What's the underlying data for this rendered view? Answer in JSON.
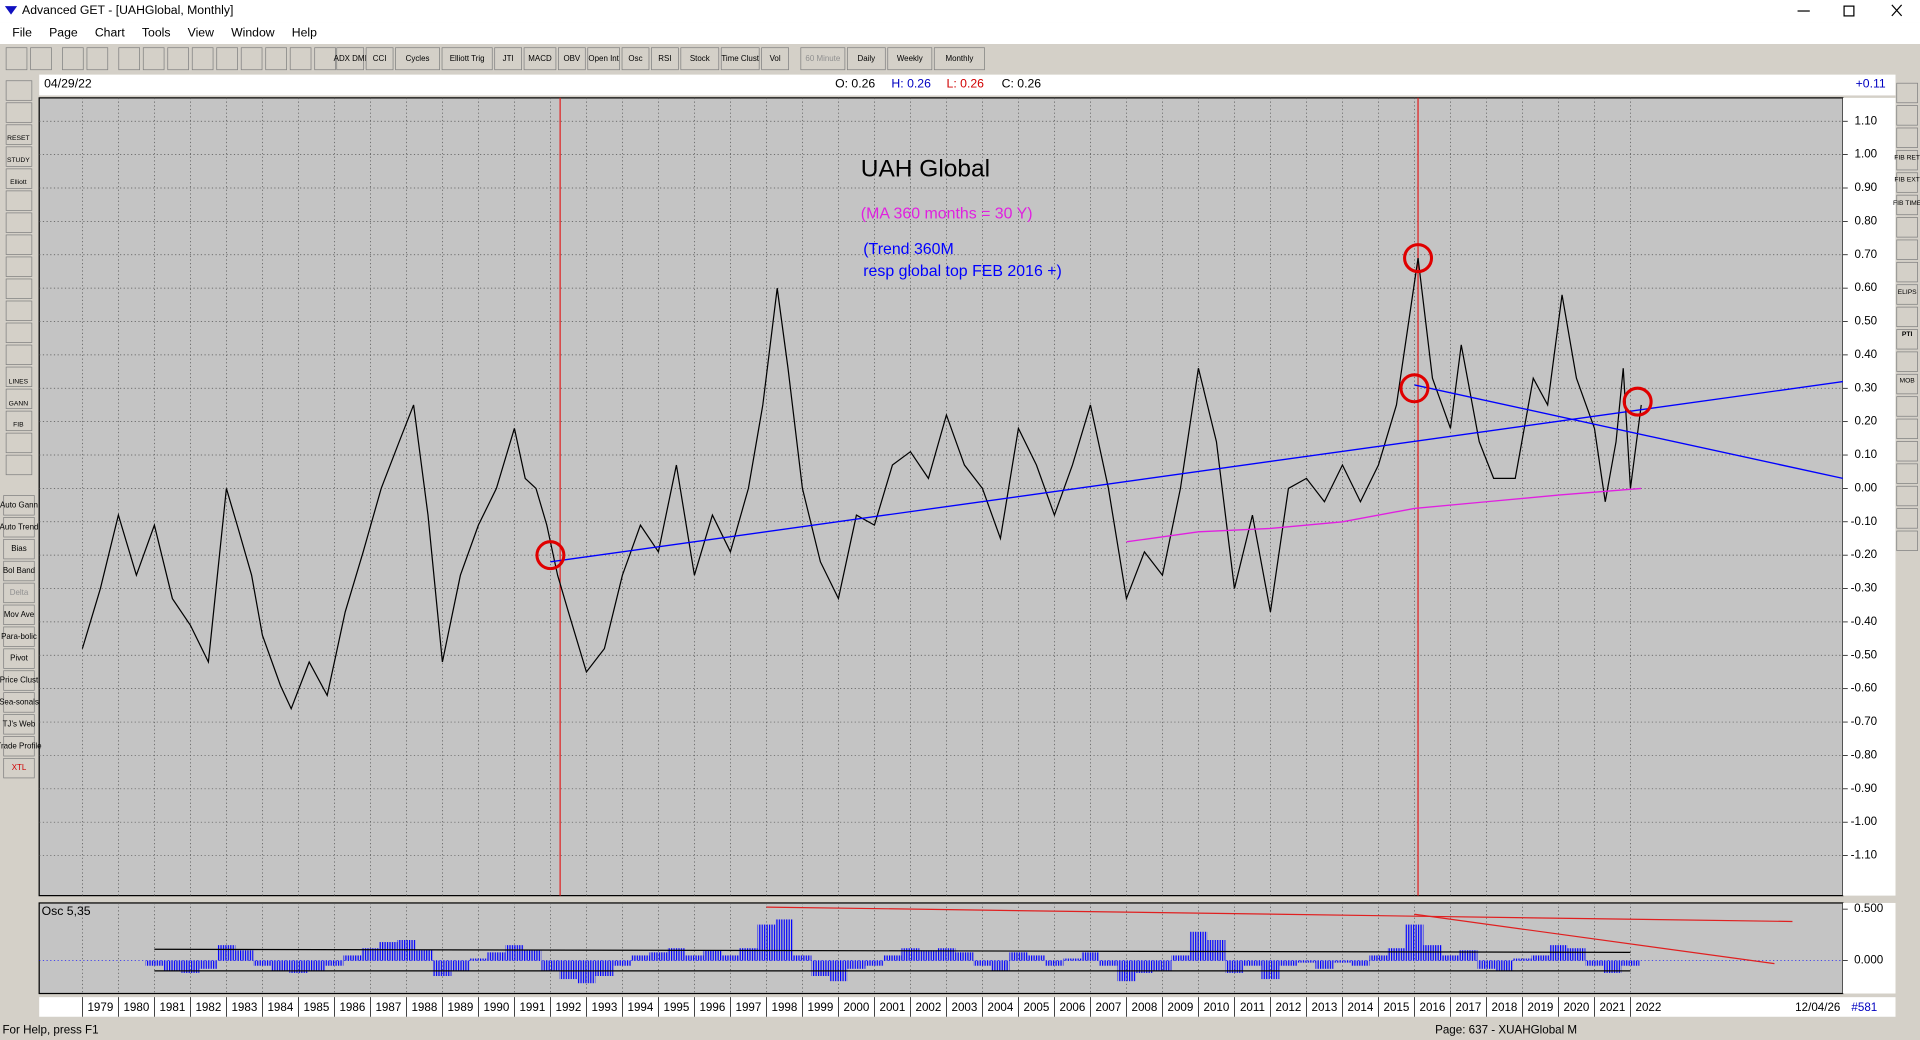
{
  "window": {
    "title": "Advanced GET - [UAHGlobal, Monthly]"
  },
  "menu": [
    "File",
    "Page",
    "Chart",
    "Tools",
    "View",
    "Window",
    "Help"
  ],
  "toolbar": [
    "ADX DMI",
    "CCI",
    "Cycles",
    "Elliott Trig",
    "JTI",
    "MACD",
    "OBV",
    "Open Int",
    "Osc",
    "RSI",
    "Stock",
    "Time Clust",
    "Vol",
    "60 Minute",
    "Daily",
    "Weekly",
    "Monthly"
  ],
  "left_toolbar": [
    "RESET",
    "STUDY",
    "Elliott",
    "LINES",
    "GANN",
    "FIB",
    "Auto Gann",
    "Auto Trend",
    "Bias",
    "Bol Band",
    "Delta",
    "Mov Ave",
    "Para-bolic",
    "Pivot",
    "Price Clust",
    "Sea-sonals",
    "TJ's Web",
    "Trade Profile",
    "XTL"
  ],
  "right_toolbar": [
    "FIB RET",
    "FIB EXT",
    "FIB TIME",
    "ELIPS",
    "PTI",
    "MOB"
  ],
  "header": {
    "date": "04/29/22",
    "open": "O: 0.26",
    "high": "H: 0.26",
    "low": "L: 0.26",
    "close": "C: 0.26",
    "axis_top": "+0.11"
  },
  "chart_data": {
    "type": "line",
    "annotations": [
      "UAH Global",
      "(MA 360 months = 30 Y)",
      "(Trend 360M",
      "resp global top FEB 2016 +)"
    ],
    "xlim": [
      1977.8,
      2027.9
    ],
    "xticks": [
      1979,
      1980,
      1981,
      1982,
      1983,
      1984,
      1985,
      1986,
      1987,
      1988,
      1989,
      1990,
      1991,
      1992,
      1993,
      1994,
      1995,
      1996,
      1997,
      1998,
      1999,
      2000,
      2001,
      2002,
      2003,
      2004,
      2005,
      2006,
      2007,
      2008,
      2009,
      2010,
      2011,
      2012,
      2013,
      2014,
      2015,
      2016,
      2017,
      2018,
      2019,
      2020,
      2021,
      2022
    ],
    "ylim": [
      -1.22,
      1.17
    ],
    "yticks": [
      {
        "value": 1.1,
        "label": "1.10"
      },
      {
        "value": 1.0,
        "label": "1.00"
      },
      {
        "value": 0.9,
        "label": "0.90"
      },
      {
        "value": 0.8,
        "label": "0.80"
      },
      {
        "value": 0.7,
        "label": "0.70"
      },
      {
        "value": 0.6,
        "label": "0.60"
      },
      {
        "value": 0.5,
        "label": "0.50"
      },
      {
        "value": 0.4,
        "label": "0.40"
      },
      {
        "value": 0.3,
        "label": "0.30"
      },
      {
        "value": 0.2,
        "label": "0.20"
      },
      {
        "value": 0.1,
        "label": "0.10"
      },
      {
        "value": 0,
        "label": "0.00"
      },
      {
        "value": -0.1,
        "label": "-0.10"
      },
      {
        "value": -0.2,
        "label": "-0.20"
      },
      {
        "value": -0.3,
        "label": "-0.30"
      },
      {
        "value": -0.4,
        "label": "-0.40"
      },
      {
        "value": -0.5,
        "label": "-0.50"
      },
      {
        "value": -0.6,
        "label": "-0.60"
      },
      {
        "value": -0.7,
        "label": "-0.70"
      },
      {
        "value": -0.8,
        "label": "-0.80"
      },
      {
        "value": -0.9,
        "label": "-0.90"
      },
      {
        "value": -1.0,
        "label": "-1.00"
      },
      {
        "value": -1.1,
        "label": "-1.10"
      }
    ],
    "grid": true,
    "series": [
      {
        "color": "#000000",
        "x": [
          1979.0,
          1979.5,
          1980.0,
          1980.5,
          1981.0,
          1981.5,
          1982.0,
          1982.5,
          1983.0,
          1983.3,
          1983.7,
          1984.0,
          1984.5,
          1984.8,
          1985.3,
          1985.8,
          1986.3,
          1986.8,
          1987.3,
          1987.8,
          1988.2,
          1988.6,
          1989.0,
          1989.5,
          1990.0,
          1990.5,
          1991.0,
          1991.3,
          1991.6,
          1991.9,
          1992.2,
          1992.5,
          1993.0,
          1993.5,
          1994.0,
          1994.5,
          1995.0,
          1995.5,
          1996.0,
          1996.5,
          1997.0,
          1997.5,
          1997.9,
          1998.3,
          1998.6,
          1999.0,
          1999.5,
          2000.0,
          2000.5,
          2001.0,
          2001.5,
          2002.0,
          2002.5,
          2003.0,
          2003.5,
          2004.0,
          2004.5,
          2005.0,
          2005.5,
          2006.0,
          2006.5,
          2007.0,
          2007.5,
          2008.0,
          2008.5,
          2009.0,
          2009.5,
          2010.0,
          2010.5,
          2011.0,
          2011.5,
          2012.0,
          2012.5,
          2013.0,
          2013.5,
          2014.0,
          2014.5,
          2015.0,
          2015.5,
          2016.1,
          2016.5,
          2017.0,
          2017.3,
          2017.8,
          2018.2,
          2018.8,
          2019.3,
          2019.7,
          2020.1,
          2020.5,
          2021.0,
          2021.3,
          2021.6,
          2021.8,
          2022.0,
          2022.3
        ],
        "values": [
          -0.48,
          -0.3,
          -0.08,
          -0.26,
          -0.11,
          -0.33,
          -0.41,
          -0.52,
          0,
          -0.11,
          -0.26,
          -0.44,
          -0.59,
          -0.66,
          -0.52,
          -0.62,
          -0.37,
          -0.19,
          0,
          0.14,
          0.25,
          -0.08,
          -0.52,
          -0.26,
          -0.11,
          0,
          0.18,
          0.03,
          0,
          -0.11,
          -0.26,
          -0.37,
          -0.55,
          -0.48,
          -0.26,
          -0.11,
          -0.19,
          0.07,
          -0.26,
          -0.08,
          -0.19,
          0,
          0.25,
          0.6,
          0.36,
          0,
          -0.22,
          -0.33,
          -0.08,
          -0.11,
          0.07,
          0.11,
          0.03,
          0.22,
          0.07,
          0,
          -0.15,
          0.18,
          0.07,
          -0.08,
          0.07,
          0.25,
          0,
          -0.33,
          -0.19,
          -0.26,
          0,
          0.36,
          0.14,
          -0.3,
          -0.08,
          -0.37,
          0,
          0.03,
          -0.04,
          0.07,
          -0.04,
          0.07,
          0.25,
          0.69,
          0.33,
          0.18,
          0.43,
          0.14,
          0.03,
          0.03,
          0.33,
          0.25,
          0.58,
          0.33,
          0.18,
          -0.04,
          0.14,
          0.36,
          0,
          0.25
        ]
      },
      {
        "color": "#e020e0",
        "x": [
          2008,
          2010,
          2012,
          2014,
          2016,
          2018,
          2020,
          2022.3
        ],
        "values": [
          -0.16,
          -0.13,
          -0.12,
          -0.1,
          -0.06,
          -0.04,
          -0.02,
          0
        ]
      },
      {
        "color": "#0000ff",
        "x": [
          1992,
          2027.9
        ],
        "values": [
          -0.22,
          0.32
        ]
      },
      {
        "color": "#0000ff",
        "x": [
          2016,
          2027.9
        ],
        "values": [
          0.31,
          0.03
        ]
      }
    ],
    "vlines": [
      1992.27,
      2016.1
    ],
    "markers": [
      {
        "x": 1992.0,
        "y": -0.2
      },
      {
        "x": 2016.1,
        "y": 0.69
      },
      {
        "x": 2016.0,
        "y": 0.3
      },
      {
        "x": 2022.2,
        "y": 0.26
      }
    ],
    "oscillator": {
      "title": "Osc 5,35",
      "color": "#0000ff",
      "ylim": [
        -0.32,
        0.56
      ],
      "yticks": [
        {
          "value": 0.5,
          "label": "0.500"
        },
        {
          "value": 0,
          "label": "0.000"
        }
      ],
      "x": [
        1981.0,
        1981.5,
        1982.0,
        1982.5,
        1983.0,
        1983.5,
        1984.0,
        1984.5,
        1985.0,
        1985.5,
        1986.0,
        1986.5,
        1987.0,
        1987.5,
        1988.0,
        1988.5,
        1989.0,
        1989.5,
        1990.0,
        1990.5,
        1991.0,
        1991.5,
        1992.0,
        1992.5,
        1993.0,
        1993.5,
        1994.0,
        1994.5,
        1995.0,
        1995.5,
        1996.0,
        1996.5,
        1997.0,
        1997.5,
        1998.0,
        1998.5,
        1999.0,
        1999.5,
        2000.0,
        2000.5,
        2001.0,
        2001.5,
        2002.0,
        2002.5,
        2003.0,
        2003.5,
        2004.0,
        2004.5,
        2005.0,
        2005.5,
        2006.0,
        2006.5,
        2007.0,
        2007.5,
        2008.0,
        2008.5,
        2009.0,
        2009.5,
        2010.0,
        2010.5,
        2011.0,
        2011.5,
        2012.0,
        2012.5,
        2013.0,
        2013.5,
        2014.0,
        2014.5,
        2015.0,
        2015.5,
        2016.0,
        2016.5,
        2017.0,
        2017.5,
        2018.0,
        2018.5,
        2019.0,
        2019.5,
        2020.0,
        2020.5,
        2021.0,
        2021.5,
        2022.0
      ],
      "values": [
        -0.05,
        -0.1,
        -0.12,
        -0.08,
        0.15,
        0.1,
        -0.05,
        -0.1,
        -0.12,
        -0.1,
        -0.05,
        0.05,
        0.12,
        0.18,
        0.2,
        0.1,
        -0.15,
        -0.1,
        0.02,
        0.08,
        0.15,
        0.1,
        -0.1,
        -0.18,
        -0.22,
        -0.15,
        -0.05,
        0.05,
        0.08,
        0.12,
        0.05,
        0.1,
        0.05,
        0.12,
        0.35,
        0.4,
        0.05,
        -0.15,
        -0.2,
        -0.08,
        -0.05,
        0.05,
        0.12,
        0.1,
        0.12,
        0.08,
        -0.05,
        -0.1,
        0.08,
        0.05,
        -0.05,
        0.02,
        0.08,
        -0.05,
        -0.2,
        -0.12,
        -0.1,
        0.05,
        0.28,
        0.2,
        -0.12,
        -0.05,
        -0.18,
        -0.05,
        -0.02,
        -0.08,
        -0.02,
        -0.05,
        0.05,
        0.12,
        0.35,
        0.15,
        0.05,
        0.1,
        -0.08,
        -0.1,
        0.02,
        0.05,
        0.15,
        0.12,
        -0.05,
        -0.12,
        -0.05
      ],
      "lines": [
        {
          "color": "#000000",
          "x": [
            1981,
            2022
          ],
          "values": [
            0.11,
            0.08
          ]
        },
        {
          "color": "#000000",
          "x": [
            1981,
            2022
          ],
          "values": [
            -0.1,
            -0.1
          ]
        },
        {
          "color": "#e02020",
          "x": [
            1998,
            2026.5
          ],
          "values": [
            0.52,
            0.38
          ]
        },
        {
          "color": "#e02020",
          "x": [
            2016,
            2026
          ],
          "values": [
            0.45,
            -0.03
          ]
        }
      ]
    }
  },
  "footer": {
    "end_date": "12/04/26",
    "bar_count": "#581",
    "status": "For Help, press F1",
    "page": "Page: 637 - XUAHGlobal M"
  }
}
